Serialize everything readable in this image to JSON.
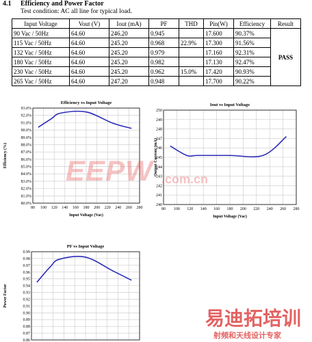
{
  "section": {
    "number": "4.1",
    "title": "Efficiency and Power Factor"
  },
  "test_condition": "Test condition: AC all line for typical load.",
  "table": {
    "headers": [
      "Input Voltage",
      "Vout (V)",
      "Iout (mA)",
      "PF",
      "THD",
      "Pin(W)",
      "Efficiency",
      "Result"
    ],
    "rows": [
      [
        "90 Vac / 50Hz",
        "64.60",
        "246.20",
        "0.945",
        "",
        "17.600",
        "90.37%"
      ],
      [
        "115 Vac / 50Hz",
        "64.60",
        "245.20",
        "0.968",
        "22.9%",
        "17.300",
        "91.56%"
      ],
      [
        "132 Vac / 50Hz",
        "64.60",
        "245.20",
        "0.979",
        "",
        "17.160",
        "92.31%"
      ],
      [
        "180 Vac / 50Hz",
        "64.60",
        "245.20",
        "0.982",
        "",
        "17.130",
        "92.47%"
      ],
      [
        "230 Vac / 50Hz",
        "64.60",
        "245.20",
        "0.962",
        "15.0%",
        "17.420",
        "90.93%"
      ],
      [
        "265 Vac / 50Hz",
        "64.60",
        "247.20",
        "0.948",
        "",
        "17.700",
        "90.22%"
      ]
    ],
    "result": "PASS"
  },
  "watermark": {
    "brand": "EEPW",
    "domain": ".com.cn",
    "cn_brand": "易迪拓培训",
    "cn_slogan": "射频和天线设计专家"
  },
  "chart_data": [
    {
      "type": "line",
      "title": "Efficiency vs Input Voltage",
      "xlabel": "Input Voltage (Vac)",
      "ylabel": "Efficiency (%)",
      "x": [
        90,
        115,
        132,
        180,
        230,
        265
      ],
      "series": [
        {
          "values": [
            90.37,
            91.56,
            92.31,
            92.47,
            90.93,
            90.22
          ]
        }
      ],
      "xlim": [
        80,
        280
      ],
      "xstep": 20,
      "ylim": [
        80.0,
        93.0
      ],
      "ystep": 1,
      "ytick_format": "pct1",
      "grid": true,
      "line_color": "#2b2bb8"
    },
    {
      "type": "line",
      "title": "Iout vs Input Voltage",
      "xlabel": "Input Voltage (Vac)",
      "ylabel": "Output Current (mA)",
      "x": [
        90,
        115,
        132,
        180,
        230,
        265
      ],
      "series": [
        {
          "values": [
            246.2,
            245.2,
            245.2,
            245.2,
            245.2,
            247.2
          ]
        }
      ],
      "xlim": [
        80,
        280
      ],
      "xstep": 20,
      "ylim": [
        240,
        250
      ],
      "ystep": 1,
      "ytick_format": "int",
      "grid": true,
      "line_color": "#2b2bb8"
    },
    {
      "type": "line",
      "title": "PF vs Input Voltage",
      "xlabel": "",
      "ylabel": "Power Factor",
      "x": [
        90,
        115,
        132,
        180,
        230,
        265
      ],
      "series": [
        {
          "values": [
            0.945,
            0.968,
            0.979,
            0.982,
            0.962,
            0.948
          ]
        }
      ],
      "xlim": [
        80,
        280
      ],
      "xstep": 20,
      "ylim": [
        0.86,
        0.99
      ],
      "ystep": 0.01,
      "ytick_format": "dec2",
      "grid": true,
      "line_color": "#2b2bb8"
    }
  ]
}
